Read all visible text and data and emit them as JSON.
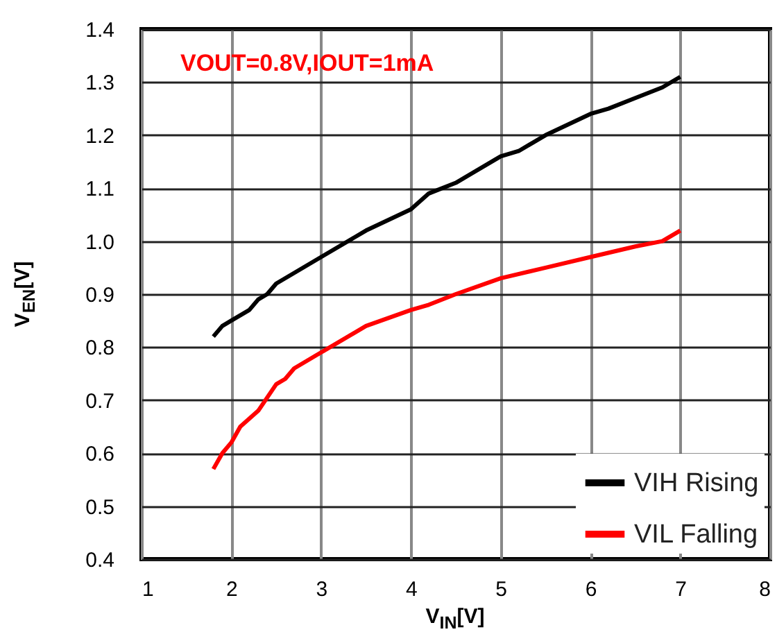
{
  "chart_data": {
    "type": "line",
    "xlabel": "V$_{IN}$[V]",
    "ylabel": "V$_{EN}$[V]",
    "annotations": [
      "VOUT=0.8V,IOUT=1mA"
    ],
    "xlim": [
      1,
      8
    ],
    "xticks": [
      1,
      2,
      3,
      4,
      5,
      6,
      7,
      8
    ],
    "ylim": [
      0.4,
      1.4
    ],
    "yticks": [
      0.4,
      0.5,
      0.6,
      0.7,
      0.8,
      0.9,
      {
        "value": 1.0,
        "label": "1.0"
      },
      1.1,
      1.2,
      1.3,
      1.4
    ],
    "grid": true,
    "legend": "bottom right",
    "marker": "none",
    "line_style": "solid",
    "series": [
      {
        "name": "VIH Rising",
        "color": "#000000",
        "x": [
          1.8,
          1.9,
          2.0,
          2.2,
          2.3,
          2.4,
          2.5,
          3.0,
          3.5,
          4.0,
          4.2,
          4.5,
          5.0,
          5.2,
          5.5,
          6.0,
          6.2,
          6.5,
          6.8,
          7.0
        ],
        "values": [
          0.82,
          0.84,
          0.85,
          0.87,
          0.89,
          0.9,
          0.92,
          0.97,
          1.02,
          1.06,
          1.09,
          1.11,
          1.16,
          1.17,
          1.2,
          1.24,
          1.25,
          1.27,
          1.29,
          1.31
        ]
      },
      {
        "name": "VIL Falling",
        "color": "#ff0000",
        "x": [
          1.8,
          1.9,
          2.0,
          2.1,
          2.3,
          2.5,
          2.6,
          2.7,
          3.0,
          3.5,
          4.0,
          4.2,
          4.5,
          5.0,
          5.5,
          6.0,
          6.5,
          6.8,
          7.0
        ],
        "values": [
          0.57,
          0.6,
          0.62,
          0.65,
          0.68,
          0.73,
          0.74,
          0.76,
          0.79,
          0.84,
          0.87,
          0.88,
          0.9,
          0.93,
          0.95,
          0.97,
          0.99,
          1.0,
          1.02
        ]
      }
    ]
  }
}
